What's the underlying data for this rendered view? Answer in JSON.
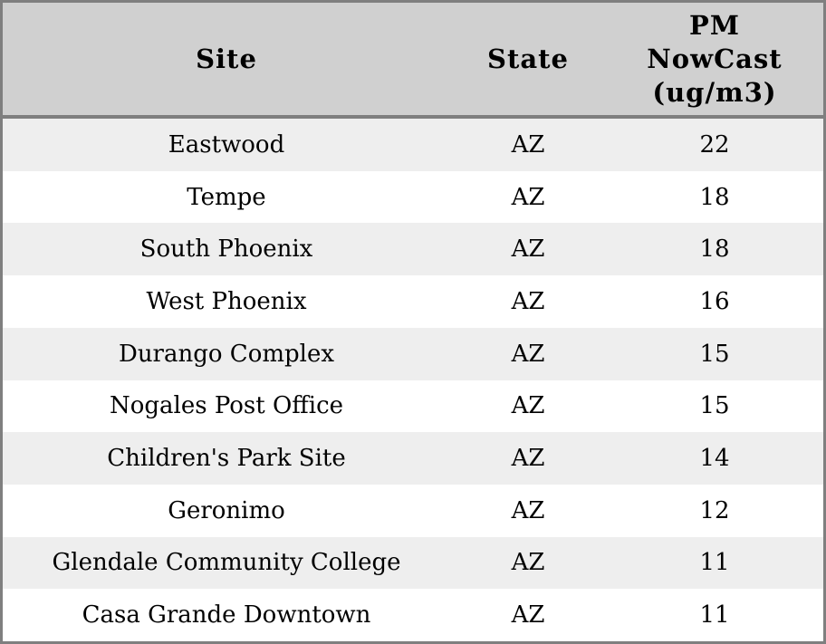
{
  "table": {
    "columns": [
      {
        "id": "site",
        "label": "Site"
      },
      {
        "id": "state",
        "label": "State"
      },
      {
        "id": "pm_nowcast",
        "label": "PM\nNowCast\n(ug/m3)"
      }
    ],
    "rows": [
      {
        "site": "Eastwood",
        "state": "AZ",
        "value": "22"
      },
      {
        "site": "Tempe",
        "state": "AZ",
        "value": "18"
      },
      {
        "site": "South Phoenix",
        "state": "AZ",
        "value": "18"
      },
      {
        "site": "West Phoenix",
        "state": "AZ",
        "value": "16"
      },
      {
        "site": "Durango Complex",
        "state": "AZ",
        "value": "15"
      },
      {
        "site": "Nogales Post Office",
        "state": "AZ",
        "value": "15"
      },
      {
        "site": "Children's Park Site",
        "state": "AZ",
        "value": "14"
      },
      {
        "site": "Geronimo",
        "state": "AZ",
        "value": "12"
      },
      {
        "site": "Glendale Community College",
        "state": "AZ",
        "value": "11"
      },
      {
        "site": "Casa Grande Downtown",
        "state": "AZ",
        "value": "11"
      }
    ]
  },
  "chart_data": {
    "type": "table",
    "columns": [
      "Site",
      "State",
      "PM NowCast (ug/m3)"
    ],
    "rows": [
      [
        "Eastwood",
        "AZ",
        22
      ],
      [
        "Tempe",
        "AZ",
        18
      ],
      [
        "South Phoenix",
        "AZ",
        18
      ],
      [
        "West Phoenix",
        "AZ",
        16
      ],
      [
        "Durango Complex",
        "AZ",
        15
      ],
      [
        "Nogales Post Office",
        "AZ",
        15
      ],
      [
        "Children's Park Site",
        "AZ",
        14
      ],
      [
        "Geronimo",
        "AZ",
        12
      ],
      [
        "Glendale Community College",
        "AZ",
        11
      ],
      [
        "Casa Grande Downtown",
        "AZ",
        11
      ]
    ]
  },
  "colors": {
    "header_bg": "#d0d0d0",
    "row_odd_bg": "#eeeeee",
    "row_even_bg": "#ffffff",
    "border_color": "#7f7f7f",
    "text_color": "#000000"
  }
}
